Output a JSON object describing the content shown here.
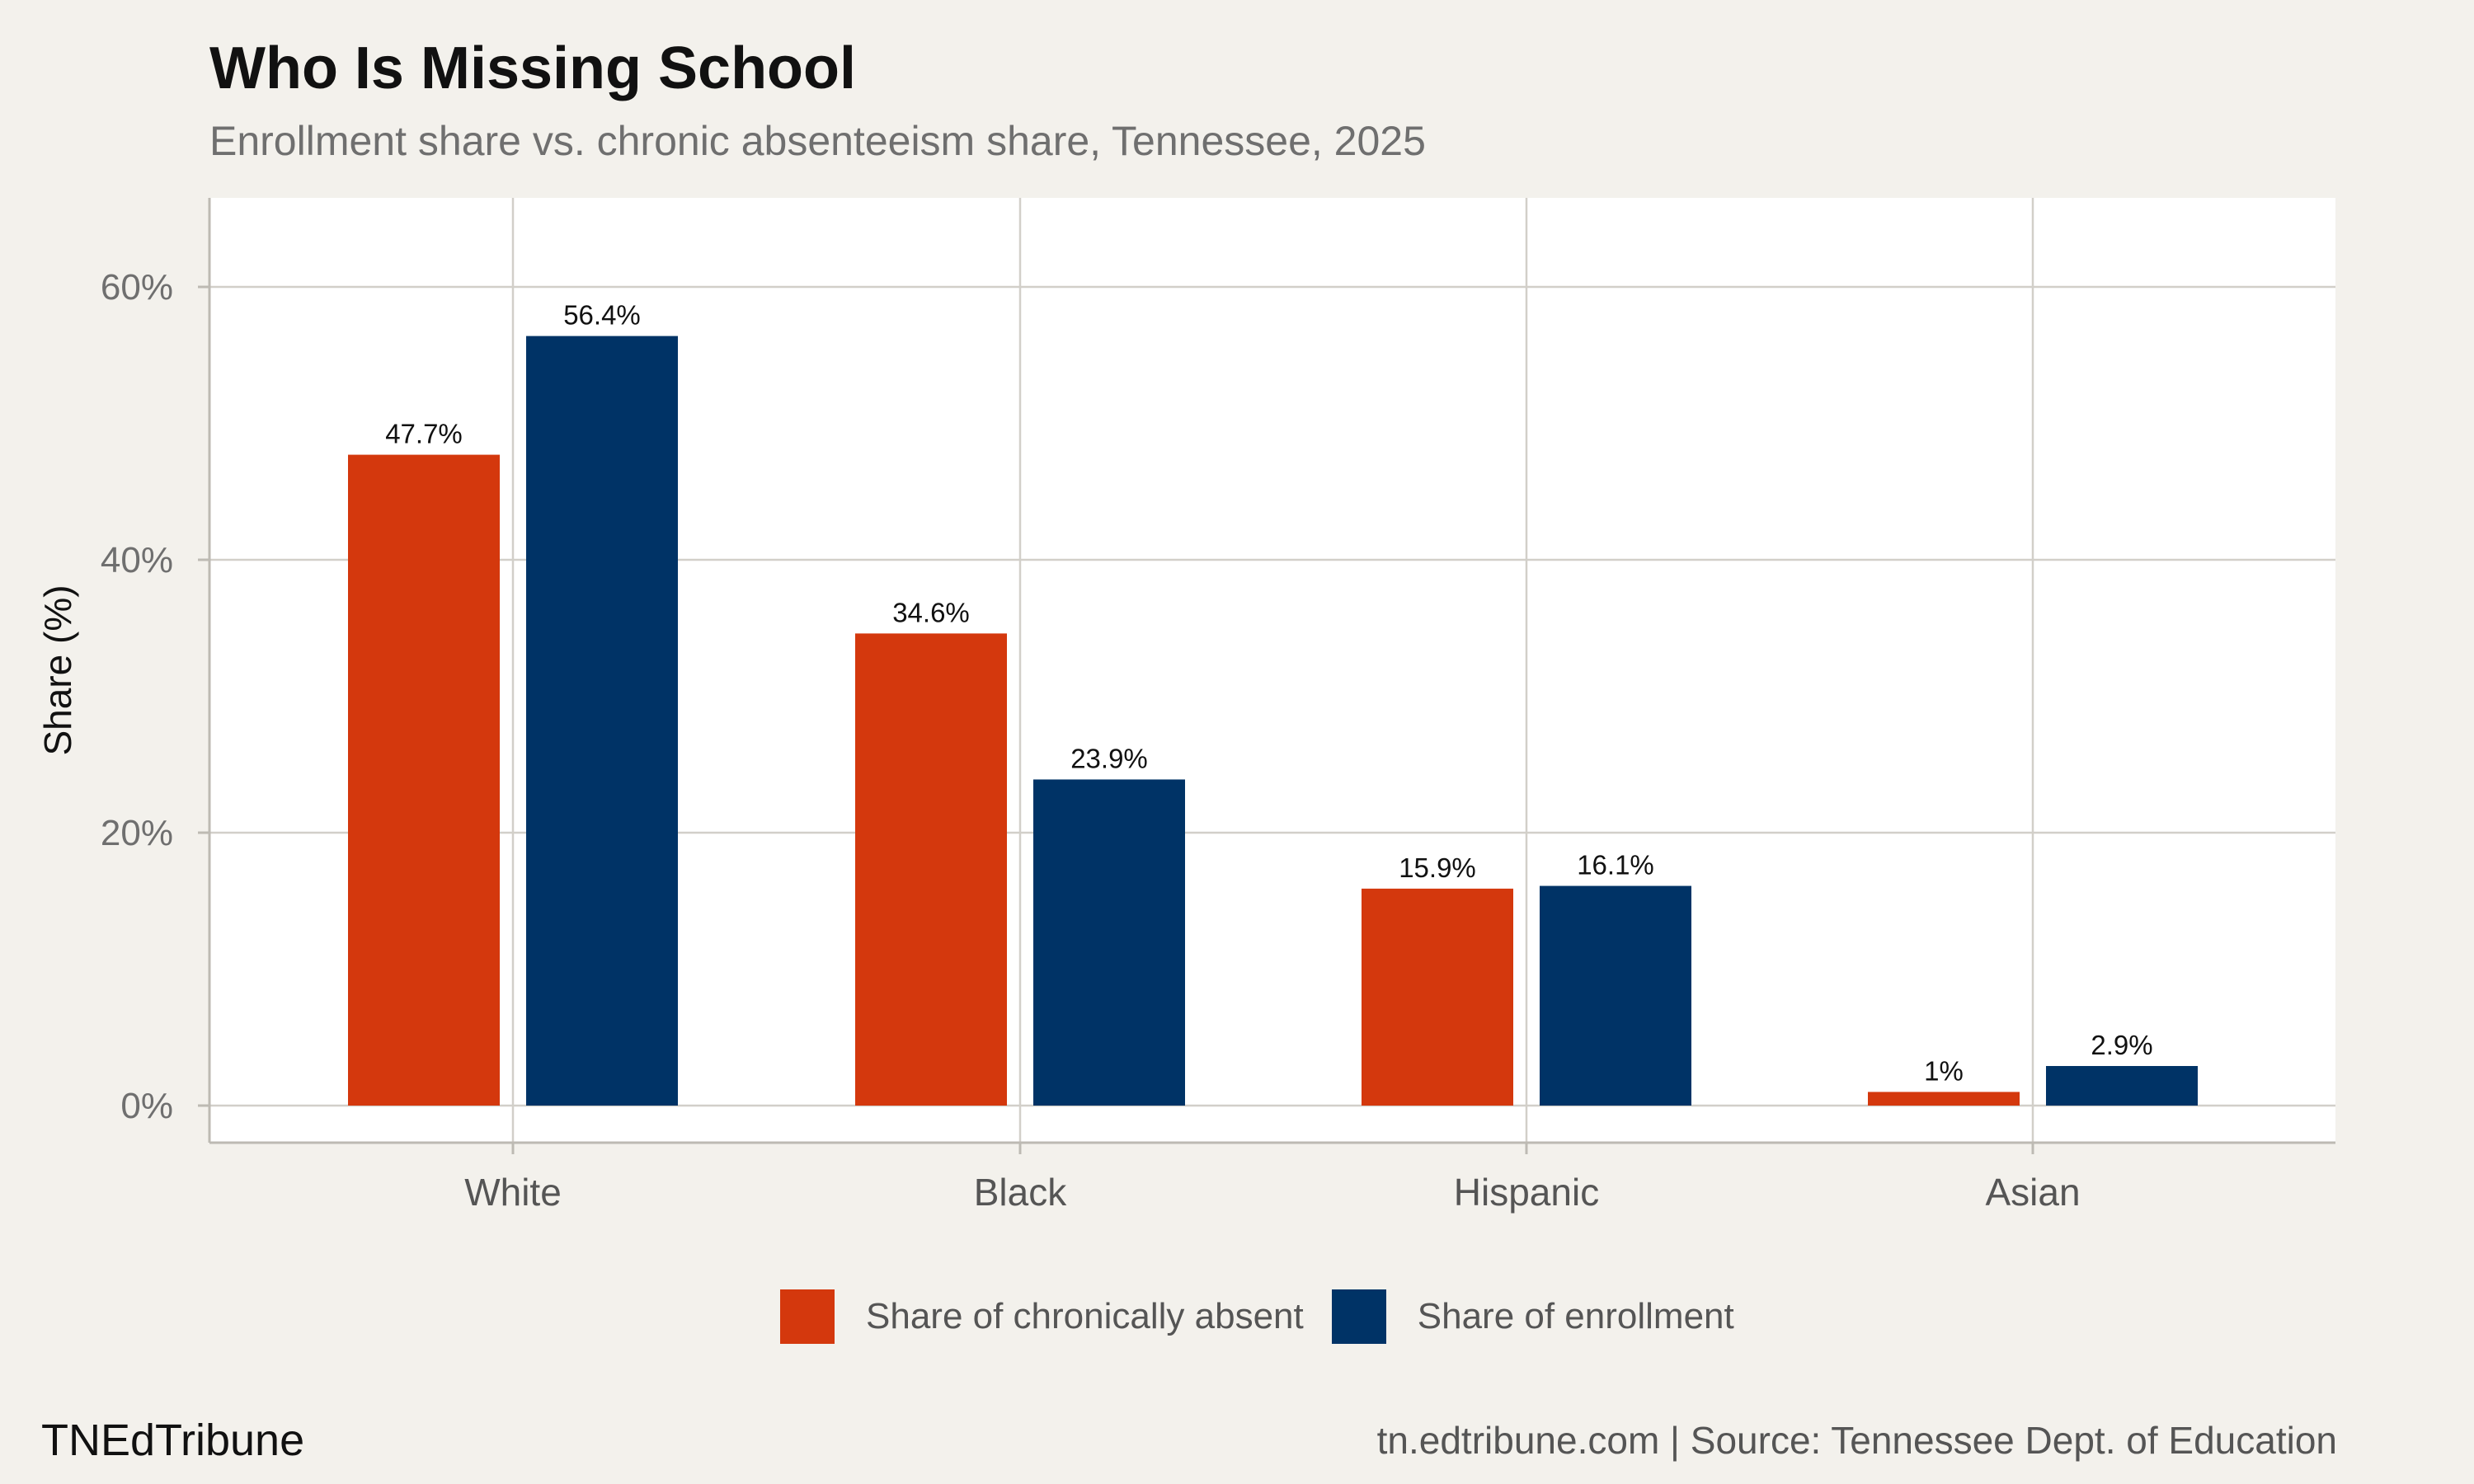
{
  "title": "Who Is Missing School",
  "subtitle": "Enrollment share vs. chronic absenteeism share, Tennessee, 2025",
  "brand": "TNEdTribune",
  "caption": "tn.edtribune.com | Source: Tennessee Dept. of Education",
  "chart_data": {
    "type": "bar",
    "ylabel": "Share (%)",
    "ylim": [
      0,
      65
    ],
    "yticks": [
      0,
      20,
      40,
      60
    ],
    "ytick_labels": [
      "0%",
      "20%",
      "40%",
      "60%"
    ],
    "categories": [
      "White",
      "Black",
      "Hispanic",
      "Asian"
    ],
    "series": [
      {
        "name": "Share of chronically absent",
        "color": "#d4380d",
        "values": [
          47.7,
          34.6,
          15.9,
          1.0
        ],
        "labels": [
          "47.7%",
          "34.6%",
          "15.9%",
          "1%"
        ]
      },
      {
        "name": "Share of enrollment",
        "color": "#003366",
        "values": [
          56.4,
          23.9,
          16.1,
          2.9
        ],
        "labels": [
          "56.4%",
          "23.9%",
          "16.1%",
          "2.9%"
        ]
      }
    ],
    "grid": true,
    "legend": "bottom"
  }
}
